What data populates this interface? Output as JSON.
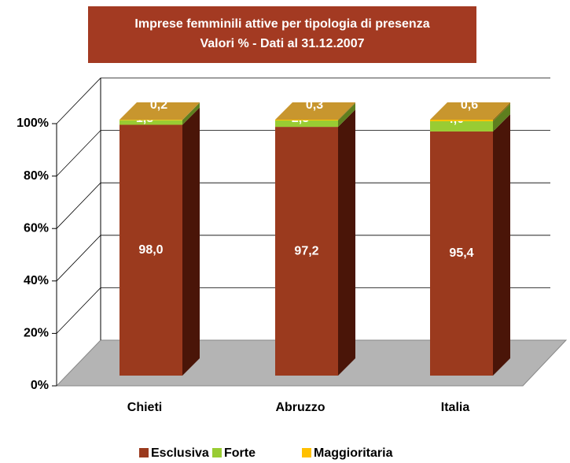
{
  "chart_data": {
    "type": "bar3d_stacked",
    "title": [
      "Imprese femminili attive per tipologia di presenza",
      "Valori % - Dati al 31.12.2007"
    ],
    "categories": [
      "Chieti",
      "Abruzzo",
      "Italia"
    ],
    "series": [
      {
        "name": "Esclusiva",
        "color": "#9b3a1e",
        "side": "#4a1508",
        "values": [
          98.0,
          97.2,
          95.4
        ],
        "value_labels": [
          "98,0",
          "97,2",
          "95,4"
        ]
      },
      {
        "name": "Forte",
        "color": "#99cc33",
        "side": "#5e7f1e",
        "values": [
          1.8,
          2.5,
          4.0
        ],
        "value_labels": [
          "1,8",
          "2,5",
          "4,0"
        ]
      },
      {
        "name": "Maggioritaria",
        "color": "#ffc000",
        "side": "#8a6a10",
        "values": [
          0.2,
          0.3,
          0.6
        ],
        "value_labels": [
          "0,2",
          "0,3",
          "0,6"
        ]
      }
    ],
    "top_color": "#c8962e",
    "ylim": [
      0,
      100
    ],
    "yticks": [
      {
        "value": 0,
        "label": "0%"
      },
      {
        "value": 20,
        "label": "20%"
      },
      {
        "value": 40,
        "label": "40%"
      },
      {
        "value": 60,
        "label": "60%"
      },
      {
        "value": 80,
        "label": "80%"
      },
      {
        "value": 100,
        "label": "100%"
      }
    ],
    "grid": true
  }
}
